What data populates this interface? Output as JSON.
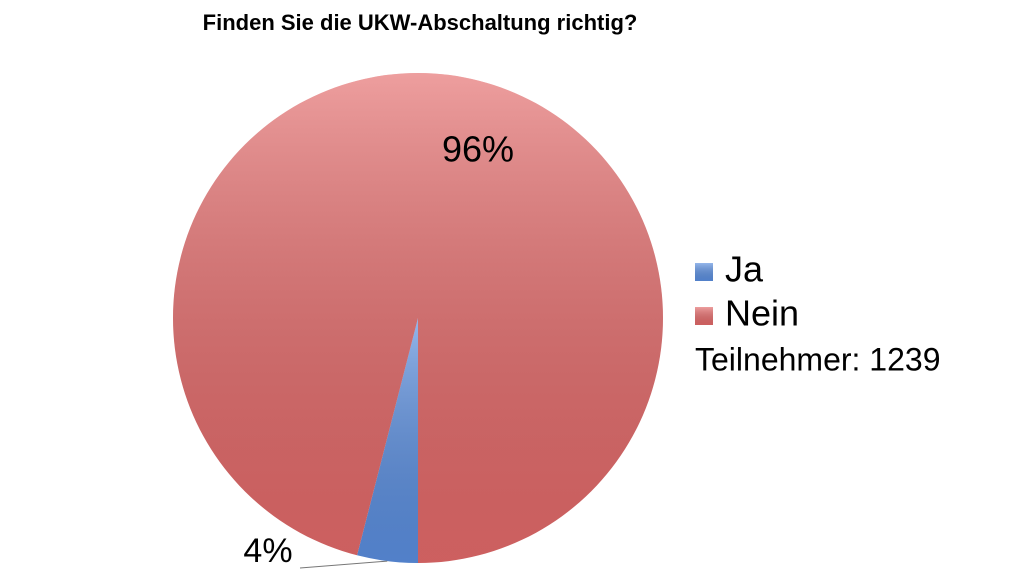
{
  "chart_data": {
    "type": "pie",
    "title": "Finden Sie die UKW-Abschaltung richtig?",
    "categories": [
      "Ja",
      "Nein"
    ],
    "values": [
      4,
      96
    ],
    "value_labels": [
      "4%",
      "96%"
    ],
    "colors": [
      "#5b8fe0",
      "#e46a6a"
    ],
    "legend": "right",
    "annotation": "Teilnehmer: 1239"
  }
}
